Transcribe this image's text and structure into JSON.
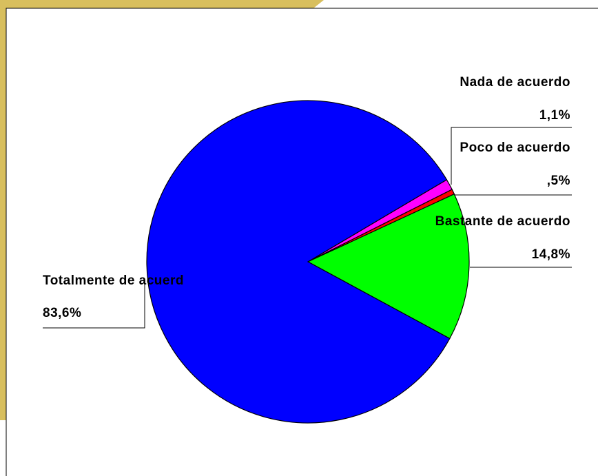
{
  "chart_data": {
    "type": "pie",
    "categories": [
      "Nada de acuerdo",
      "Poco de acuerdo",
      "Bastante de acuerdo",
      "Totalmente de acuerd"
    ],
    "values": [
      1.1,
      0.5,
      14.8,
      83.6
    ],
    "value_labels": [
      "1,1%",
      ",5%",
      "14,8%",
      "83,6%"
    ],
    "colors": [
      "#ff00ff",
      "#ff0000",
      "#00ff00",
      "#0000ff"
    ]
  }
}
